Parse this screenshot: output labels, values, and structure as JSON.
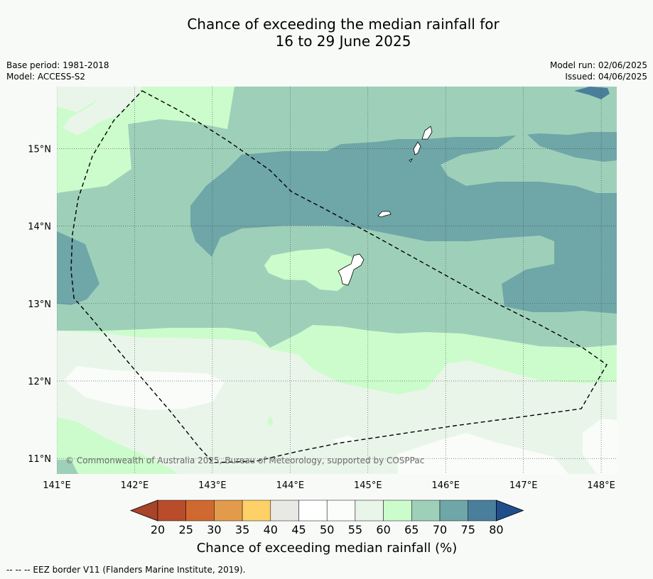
{
  "title_line1": "Chance of exceeding the median rainfall for",
  "title_line2": "16 to 29 June 2025",
  "base_period": "Base period: 1981-2018",
  "model": "Model: ACCESS-S2",
  "model_run": "Model run: 02/06/2025",
  "issued": "Issued: 04/06/2025",
  "copyright": "© Commonwealth of Australia 2025, Bureau of Meteorology, supported by COSPPac",
  "lon_ticks": [
    "141°E",
    "142°E",
    "143°E",
    "144°E",
    "145°E",
    "146°E",
    "147°E",
    "148°E"
  ],
  "lat_ticks": [
    "15°N",
    "14°N",
    "13°N",
    "12°N",
    "11°N"
  ],
  "colorbar": {
    "title": "Chance of exceeding median rainfall (%)",
    "ticks": [
      "20",
      "25",
      "30",
      "35",
      "40",
      "45",
      "50",
      "55",
      "60",
      "65",
      "70",
      "75",
      "80"
    ],
    "colors": [
      "#a8442a",
      "#b84c2b",
      "#d0692f",
      "#e39a4a",
      "#fdd068",
      "#e8e9e4",
      "#ffffff",
      "#fbfdfb",
      "#eaf5ea",
      "#ccfccc",
      "#9ed0b9",
      "#6fa6a8",
      "#4a7f9c",
      "#1e4f8a"
    ]
  },
  "legend_note": "--  --  -- EEZ border V11 (Flanders Marine Institute, 2019).",
  "map_data": {
    "lon_range": [
      141.0,
      148.2
    ],
    "lat_range": [
      10.8,
      15.8
    ],
    "colors": {
      "c50": "#f9fcf9",
      "c55": "#eaf5ea",
      "c60": "#ccfccc",
      "c65": "#9ed0b9",
      "c70": "#6fa6a8",
      "c75": "#4a7f9c",
      "island_fill": "#ffffff",
      "eez": "#000000"
    }
  }
}
